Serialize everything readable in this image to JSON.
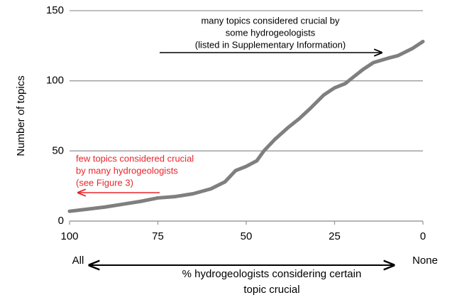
{
  "chart_data": {
    "type": "line",
    "x": [
      100,
      95,
      90,
      85,
      80,
      75,
      70,
      65,
      60,
      56,
      53,
      50,
      47,
      45,
      42,
      38,
      35,
      32,
      28,
      25,
      22,
      20,
      17,
      14,
      10,
      7,
      3,
      0
    ],
    "series": [
      {
        "name": "Number of topics",
        "color": "#7f7f7f",
        "values": [
          7,
          8.5,
          10,
          12,
          14,
          16.5,
          17.5,
          19.5,
          23,
          28,
          36,
          39,
          43,
          50,
          58,
          67,
          73,
          80,
          90,
          95,
          98,
          102,
          108,
          113,
          116,
          118,
          123,
          128
        ]
      }
    ],
    "xlim": [
      100,
      0
    ],
    "xticks": [
      100,
      75,
      50,
      25,
      0
    ],
    "ylim": [
      0,
      150
    ],
    "yticks": [
      0,
      50,
      100,
      150
    ],
    "grid": true,
    "ylabel": "Number of topics",
    "xlabel": [
      "% hydrogeologists considering certain",
      "topic crucial"
    ],
    "x_end_labels": [
      "All",
      "None"
    ],
    "annotations": [
      {
        "lines": [
          "many topics considered crucial by",
          "some hydrogeologists",
          "(listed in Supplementary Information)"
        ],
        "color": "#000000"
      },
      {
        "lines": [
          "few topics considered crucial",
          "by many hydrogeologists",
          "(see Figure 3)"
        ],
        "color": "#e8262b"
      }
    ]
  }
}
